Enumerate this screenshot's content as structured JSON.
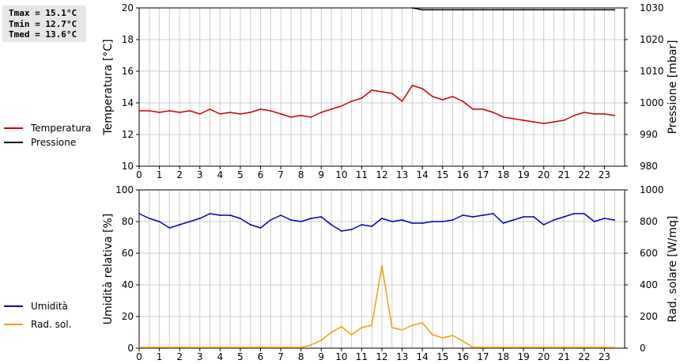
{
  "stats": {
    "tmax": "Tmax = 15.1°C",
    "tmin": "Tmin = 12.7°C",
    "tmed": "Tmed = 13.6°C"
  },
  "colors": {
    "temperature": "#cc0000",
    "pressure": "#000000",
    "humidity": "#0000bb",
    "radiation": "#f0a000",
    "grid": "#cccccc"
  },
  "chart_data": [
    {
      "type": "line",
      "grid": true,
      "legend_placement": "left",
      "xlim": [
        0,
        24
      ],
      "x_ticks": [
        "0",
        "1",
        "2",
        "3",
        "4",
        "5",
        "6",
        "7",
        "8",
        "9",
        "10",
        "11",
        "12",
        "13",
        "14",
        "15",
        "16",
        "17",
        "18",
        "19",
        "20",
        "21",
        "22",
        "23"
      ],
      "ylabel": "Temperatura [°C]",
      "ylim": [
        10,
        20
      ],
      "y_ticks": [
        "10",
        "12",
        "14",
        "16",
        "18",
        "20"
      ],
      "y2label": "Pressione [mbar]",
      "y2lim": [
        980,
        1030
      ],
      "y2_ticks": [
        "980",
        "990",
        "1000",
        "1010",
        "1020",
        "1030"
      ],
      "series": [
        {
          "name": "Temperatura",
          "axis": "left",
          "color": "#cc0000",
          "x": [
            0,
            0.5,
            1,
            1.5,
            2,
            2.5,
            3,
            3.5,
            4,
            4.5,
            5,
            5.5,
            6,
            6.5,
            7,
            7.5,
            8,
            8.5,
            9,
            9.5,
            10,
            10.5,
            11,
            11.5,
            12,
            12.5,
            13,
            13.5,
            14,
            14.5,
            15,
            15.5,
            16,
            16.5,
            17,
            17.5,
            18,
            18.5,
            19,
            19.5,
            20,
            20.5,
            21,
            21.5,
            22,
            22.5,
            23,
            23.5
          ],
          "y": [
            13.5,
            13.5,
            13.4,
            13.5,
            13.4,
            13.5,
            13.3,
            13.6,
            13.3,
            13.4,
            13.3,
            13.4,
            13.6,
            13.5,
            13.3,
            13.1,
            13.2,
            13.1,
            13.4,
            13.6,
            13.8,
            14.1,
            14.3,
            14.8,
            14.7,
            14.6,
            14.1,
            15.1,
            14.9,
            14.4,
            14.2,
            14.4,
            14.1,
            13.6,
            13.6,
            13.4,
            13.1,
            13.0,
            12.9,
            12.8,
            12.7,
            12.8,
            12.9,
            13.2,
            13.4,
            13.3,
            13.3,
            13.2
          ]
        },
        {
          "name": "Pressione",
          "axis": "right",
          "color": "#000000",
          "x": [
            13.5,
            14,
            14.5,
            15,
            16,
            17,
            18,
            19,
            20,
            21,
            22,
            23,
            23.5
          ],
          "y": [
            1030,
            1029.4,
            1029.4,
            1029.4,
            1029.4,
            1029.4,
            1029.4,
            1029.4,
            1029.4,
            1029.4,
            1029.4,
            1029.4,
            1029.4
          ]
        }
      ]
    },
    {
      "type": "line",
      "grid": true,
      "legend_placement": "left",
      "xlim": [
        0,
        24
      ],
      "x_ticks": [
        "0",
        "1",
        "2",
        "3",
        "4",
        "5",
        "6",
        "7",
        "8",
        "9",
        "10",
        "11",
        "12",
        "13",
        "14",
        "15",
        "16",
        "17",
        "18",
        "19",
        "20",
        "21",
        "22",
        "23"
      ],
      "ylabel": "Umidità relativa [%]",
      "ylim": [
        0,
        100
      ],
      "y_ticks": [
        "0",
        "20",
        "40",
        "60",
        "80",
        "100"
      ],
      "y2label": "Rad. solare [W/mq]",
      "y2lim": [
        0,
        1000
      ],
      "y2_ticks": [
        "0",
        "200",
        "400",
        "600",
        "800",
        "1000"
      ],
      "series": [
        {
          "name": "Umidità",
          "axis": "left",
          "color": "#0000bb",
          "x": [
            0,
            0.5,
            1,
            1.5,
            2,
            2.5,
            3,
            3.5,
            4,
            4.5,
            5,
            5.5,
            6,
            6.5,
            7,
            7.5,
            8,
            8.5,
            9,
            9.5,
            10,
            10.5,
            11,
            11.5,
            12,
            12.5,
            13,
            13.5,
            14,
            14.5,
            15,
            15.5,
            16,
            16.5,
            17,
            17.5,
            18,
            18.5,
            19,
            19.5,
            20,
            20.5,
            21,
            21.5,
            22,
            22.5,
            23,
            23.5
          ],
          "y": [
            85,
            82,
            80,
            76,
            78,
            80,
            82,
            85,
            84,
            84,
            82,
            78,
            76,
            81,
            84,
            81,
            80,
            82,
            83,
            78,
            74,
            75,
            78,
            77,
            82,
            80,
            81,
            79,
            79,
            80,
            80,
            81,
            84,
            83,
            84,
            85,
            79,
            81,
            83,
            83,
            78,
            81,
            83,
            85,
            85,
            80,
            82,
            81
          ]
        },
        {
          "name": "Rad. sol.",
          "axis": "right",
          "color": "#f0a000",
          "x": [
            0,
            0.5,
            1,
            1.5,
            2,
            2.5,
            3,
            3.5,
            4,
            4.5,
            5,
            5.5,
            6,
            6.5,
            7,
            7.5,
            8,
            8.5,
            9,
            9.5,
            10,
            10.5,
            11,
            11.5,
            12,
            12.5,
            13,
            13.5,
            14,
            14.5,
            15,
            15.5,
            16,
            16.5,
            17,
            17.5,
            18,
            18.5,
            19,
            19.5,
            20,
            20.5,
            21,
            21.5,
            22,
            22.5,
            23,
            23.5
          ],
          "y": [
            5,
            5,
            5,
            5,
            5,
            5,
            5,
            5,
            5,
            5,
            5,
            5,
            5,
            5,
            5,
            5,
            5,
            20,
            50,
            100,
            135,
            85,
            130,
            145,
            520,
            130,
            115,
            145,
            160,
            85,
            65,
            80,
            45,
            5,
            5,
            5,
            5,
            5,
            5,
            5,
            5,
            5,
            5,
            5,
            5,
            5,
            5,
            5
          ]
        }
      ]
    }
  ]
}
